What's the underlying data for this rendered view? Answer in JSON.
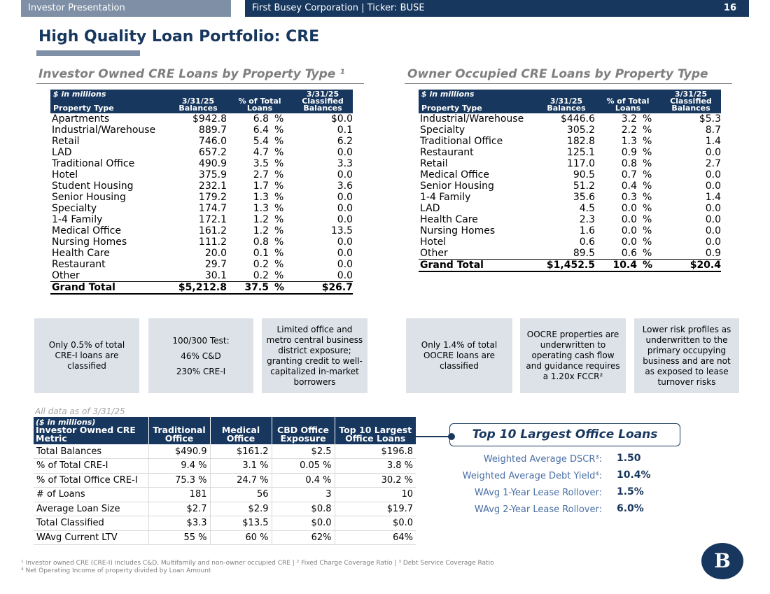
{
  "header": {
    "left": "Investor Presentation",
    "center": "First Busey Corporation  |  Ticker: BUSE",
    "page_number": "16"
  },
  "title": "High Quality Loan Portfolio: CRE",
  "investor_table": {
    "heading": "Investor Owned CRE Loans by Property Type ¹",
    "col_units": "$ in millions",
    "col_property": "Property Type",
    "col_balances": "3/31/25 Balances",
    "col_pct": "% of Total Loans",
    "col_classified": "3/31/25 Classified Balances",
    "rows": [
      {
        "name": "Apartments",
        "bal": "$942.8",
        "pct": "6.8",
        "cls": "$0.0"
      },
      {
        "name": "Industrial/Warehouse",
        "bal": "889.7",
        "pct": "6.4",
        "cls": "0.1"
      },
      {
        "name": "Retail",
        "bal": "746.0",
        "pct": "5.4",
        "cls": "6.2"
      },
      {
        "name": "LAD",
        "bal": "657.2",
        "pct": "4.7",
        "cls": "0.0"
      },
      {
        "name": "Traditional Office",
        "bal": "490.9",
        "pct": "3.5",
        "cls": "3.3"
      },
      {
        "name": "Hotel",
        "bal": "375.9",
        "pct": "2.7",
        "cls": "0.0"
      },
      {
        "name": "Student Housing",
        "bal": "232.1",
        "pct": "1.7",
        "cls": "3.6"
      },
      {
        "name": "Senior Housing",
        "bal": "179.2",
        "pct": "1.3",
        "cls": "0.0"
      },
      {
        "name": "Specialty",
        "bal": "174.7",
        "pct": "1.3",
        "cls": "0.0"
      },
      {
        "name": "1-4 Family",
        "bal": "172.1",
        "pct": "1.2",
        "cls": "0.0"
      },
      {
        "name": "Medical Office",
        "bal": "161.2",
        "pct": "1.2",
        "cls": "13.5"
      },
      {
        "name": "Nursing Homes",
        "bal": "111.2",
        "pct": "0.8",
        "cls": "0.0"
      },
      {
        "name": "Health Care",
        "bal": "20.0",
        "pct": "0.1",
        "cls": "0.0"
      },
      {
        "name": "Restaurant",
        "bal": "29.7",
        "pct": "0.2",
        "cls": "0.0"
      },
      {
        "name": "Other",
        "bal": "30.1",
        "pct": "0.2",
        "cls": "0.0"
      }
    ],
    "total": {
      "name": "Grand Total",
      "bal": "$5,212.8",
      "pct": "37.5",
      "cls": "$26.7"
    }
  },
  "owner_table": {
    "heading": "Owner Occupied CRE Loans by Property Type",
    "col_units": "$ in millions",
    "col_property": "Property Type",
    "col_balances": "3/31/25 Balances",
    "col_pct": "% of Total Loans",
    "col_classified": "3/31/25 Classified Balances",
    "rows": [
      {
        "name": "Industrial/Warehouse",
        "bal": "$446.6",
        "pct": "3.2",
        "cls": "$5.3"
      },
      {
        "name": "Specialty",
        "bal": "305.2",
        "pct": "2.2",
        "cls": "8.7"
      },
      {
        "name": "Traditional Office",
        "bal": "182.8",
        "pct": "1.3",
        "cls": "1.4"
      },
      {
        "name": "Restaurant",
        "bal": "125.1",
        "pct": "0.9",
        "cls": "0.0"
      },
      {
        "name": "Retail",
        "bal": "117.0",
        "pct": "0.8",
        "cls": "2.7"
      },
      {
        "name": "Medical Office",
        "bal": "90.5",
        "pct": "0.7",
        "cls": "0.0"
      },
      {
        "name": "Senior Housing",
        "bal": "51.2",
        "pct": "0.4",
        "cls": "0.0"
      },
      {
        "name": "1-4 Family",
        "bal": "35.6",
        "pct": "0.3",
        "cls": "1.4"
      },
      {
        "name": "LAD",
        "bal": "4.5",
        "pct": "0.0",
        "cls": "0.0"
      },
      {
        "name": "Health Care",
        "bal": "2.3",
        "pct": "0.0",
        "cls": "0.0"
      },
      {
        "name": "Nursing Homes",
        "bal": "1.6",
        "pct": "0.0",
        "cls": "0.0"
      },
      {
        "name": "Hotel",
        "bal": "0.6",
        "pct": "0.0",
        "cls": "0.0"
      },
      {
        "name": "Other",
        "bal": "89.5",
        "pct": "0.6",
        "cls": "0.9"
      }
    ],
    "total": {
      "name": "Grand Total",
      "bal": "$1,452.5",
      "pct": "10.4",
      "cls": "$20.4"
    }
  },
  "pct_sign": "%",
  "info_boxes": {
    "b1": "Only 0.5% of total CRE-I loans are classified",
    "b2_line1": "100/300 Test:",
    "b2_line2": "46% C&D",
    "b2_line3": "230% CRE-I",
    "b3": "Limited office and metro central business district exposure; granting credit to well-capitalized in-market borrowers",
    "b4": "Only 1.4% of total OOCRE loans are classified",
    "b5": "OOCRE properties are underwritten to operating cash flow and guidance requires a 1.20x FCCR²",
    "b6": "Lower risk profiles as underwritten to the primary occupying business and are not as exposed to lease turnover risks"
  },
  "as_of": "All data as of 3/31/25",
  "metric_table": {
    "units": "($ in millions)",
    "headers": [
      "Investor Owned CRE Metric",
      "Traditional Office",
      "Medical Office",
      "CBD Office Exposure",
      "Top 10 Largest Office Loans"
    ],
    "rows": [
      [
        "Total Balances",
        "$490.9",
        "$161.2",
        "$2.5",
        "$196.8"
      ],
      [
        "% of Total CRE-I",
        "9.4 %",
        "3.1 %",
        "0.05 %",
        "3.8 %"
      ],
      [
        "% of Total Office CRE-I",
        "75.3 %",
        "24.7 %",
        "0.4 %",
        "30.2 %"
      ],
      [
        "# of Loans",
        "181",
        "56",
        "3",
        "10"
      ],
      [
        "Average Loan Size",
        "$2.7",
        "$2.9",
        "$0.8",
        "$19.7"
      ],
      [
        "Total Classified",
        "$3.3",
        "$13.5",
        "$0.0",
        "$0.0"
      ],
      [
        "WAvg Current LTV",
        "55 %",
        "60 %",
        "62%",
        "64%"
      ]
    ]
  },
  "top10": {
    "title": "Top 10 Largest Office Loans",
    "items": [
      {
        "label": "Weighted Average DSCR³:",
        "value": "1.50"
      },
      {
        "label": "Weighted Average Debt Yield⁴:",
        "value": "10.4%"
      },
      {
        "label": "WAvg 1-Year Lease Rollover:",
        "value": "1.5%"
      },
      {
        "label": "WAvg 2-Year Lease Rollover:",
        "value": "6.0%"
      }
    ]
  },
  "footnotes": {
    "line1": "¹ Investor owned CRE (CRE-I) includes C&D, Multifamily and non-owner occupied CRE | ² Fixed Charge Coverage Ratio | ³ Debt Service Coverage Ratio",
    "line2": "⁴ Net Operating Income of property divided by Loan Amount"
  },
  "logo_text": "B"
}
